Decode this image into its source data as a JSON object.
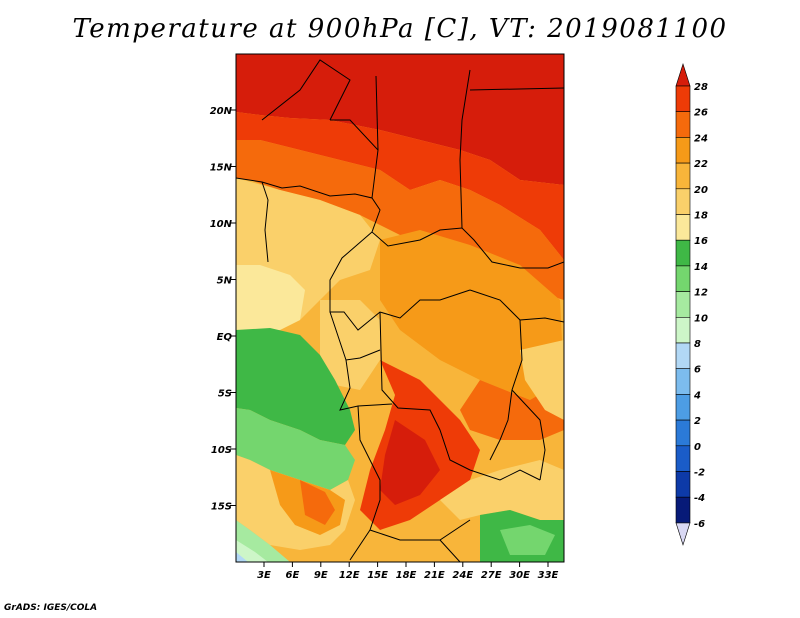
{
  "title": "Temperature at 900hPa [C], VT: 2019081100",
  "credit": "GrADS: IGES/COLA",
  "map": {
    "lat_labels": [
      "20N",
      "15N",
      "10N",
      "5N",
      "EQ",
      "5S",
      "10S",
      "15S"
    ],
    "lon_labels": [
      "3E",
      "6E",
      "9E",
      "12E",
      "15E",
      "18E",
      "21E",
      "24E",
      "27E",
      "30E",
      "33E"
    ]
  },
  "colorbar": {
    "levels": [
      "28",
      "26",
      "24",
      "22",
      "20",
      "18",
      "16",
      "14",
      "12",
      "10",
      "8",
      "6",
      "4",
      "2",
      "0",
      "-2",
      "-4",
      "-6"
    ],
    "colors": [
      "#d61d0b",
      "#ee3b07",
      "#f56a0c",
      "#f69a18",
      "#f8b53a",
      "#fad06a",
      "#fbe89a",
      "#3fb846",
      "#74d66e",
      "#a6eaa0",
      "#cdf6c8",
      "#b2d8f5",
      "#7cbcee",
      "#4d9de4",
      "#2b7ad8",
      "#1a5cc8",
      "#0d3aa8",
      "#071a78"
    ],
    "bottom_color": "#d9d8f4"
  },
  "colors": {
    "hot": "#d61d0b",
    "cool": "#3fb846"
  }
}
